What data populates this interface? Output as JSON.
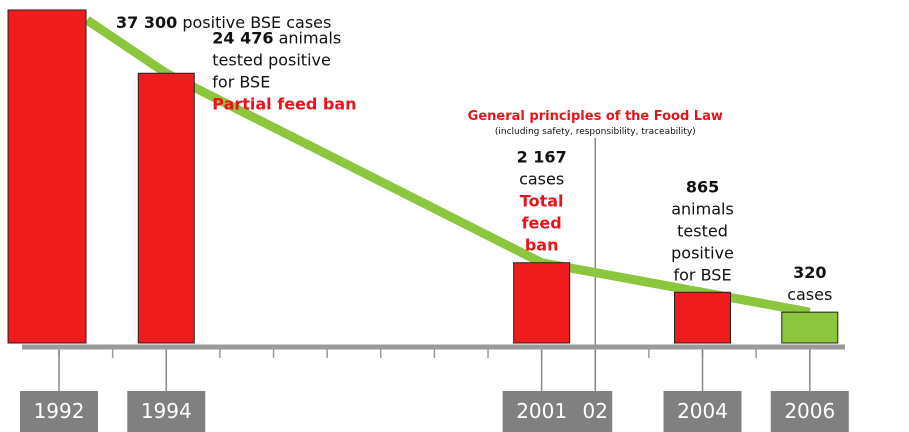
{
  "chart_data": {
    "type": "bar",
    "x": [
      1992,
      1994,
      2001,
      2004,
      2006
    ],
    "values": [
      37300,
      24476,
      2167,
      865,
      320
    ],
    "value_labels": [
      "37 300",
      "24 476",
      "2 167",
      "865",
      "320"
    ],
    "colors": [
      "#ee1c1c",
      "#ee1c1c",
      "#ee1c1c",
      "#ee1c1c",
      "#8cc63f"
    ],
    "trend_color": "#8cc63f",
    "notes": [
      [
        "positive BSE cases"
      ],
      [
        "animals",
        "tested positive",
        "for BSE"
      ],
      [
        "cases"
      ],
      [
        "animals",
        "tested",
        "positive",
        "for BSE"
      ],
      [
        "cases"
      ]
    ],
    "highlights": [
      [],
      [
        "Partial feed ban"
      ],
      [
        "Total",
        "feed",
        "ban"
      ],
      [],
      []
    ],
    "xlim": [
      1991,
      2007
    ],
    "xticks": [
      1992,
      1993,
      1994,
      1995,
      1996,
      1997,
      1998,
      1999,
      2000,
      2001,
      2002,
      2003,
      2004,
      2005,
      2006
    ],
    "x_labels": [
      1992,
      1994,
      2001,
      {
        "value": 2002,
        "label": "02"
      },
      2004,
      2006
    ],
    "ylim": [
      0,
      37300
    ],
    "y_scale": "sqrt",
    "milestone": {
      "x": 2002,
      "title": "General principles of the Food Law",
      "subtitle": "(including safety, responsibility, traceability)"
    }
  }
}
